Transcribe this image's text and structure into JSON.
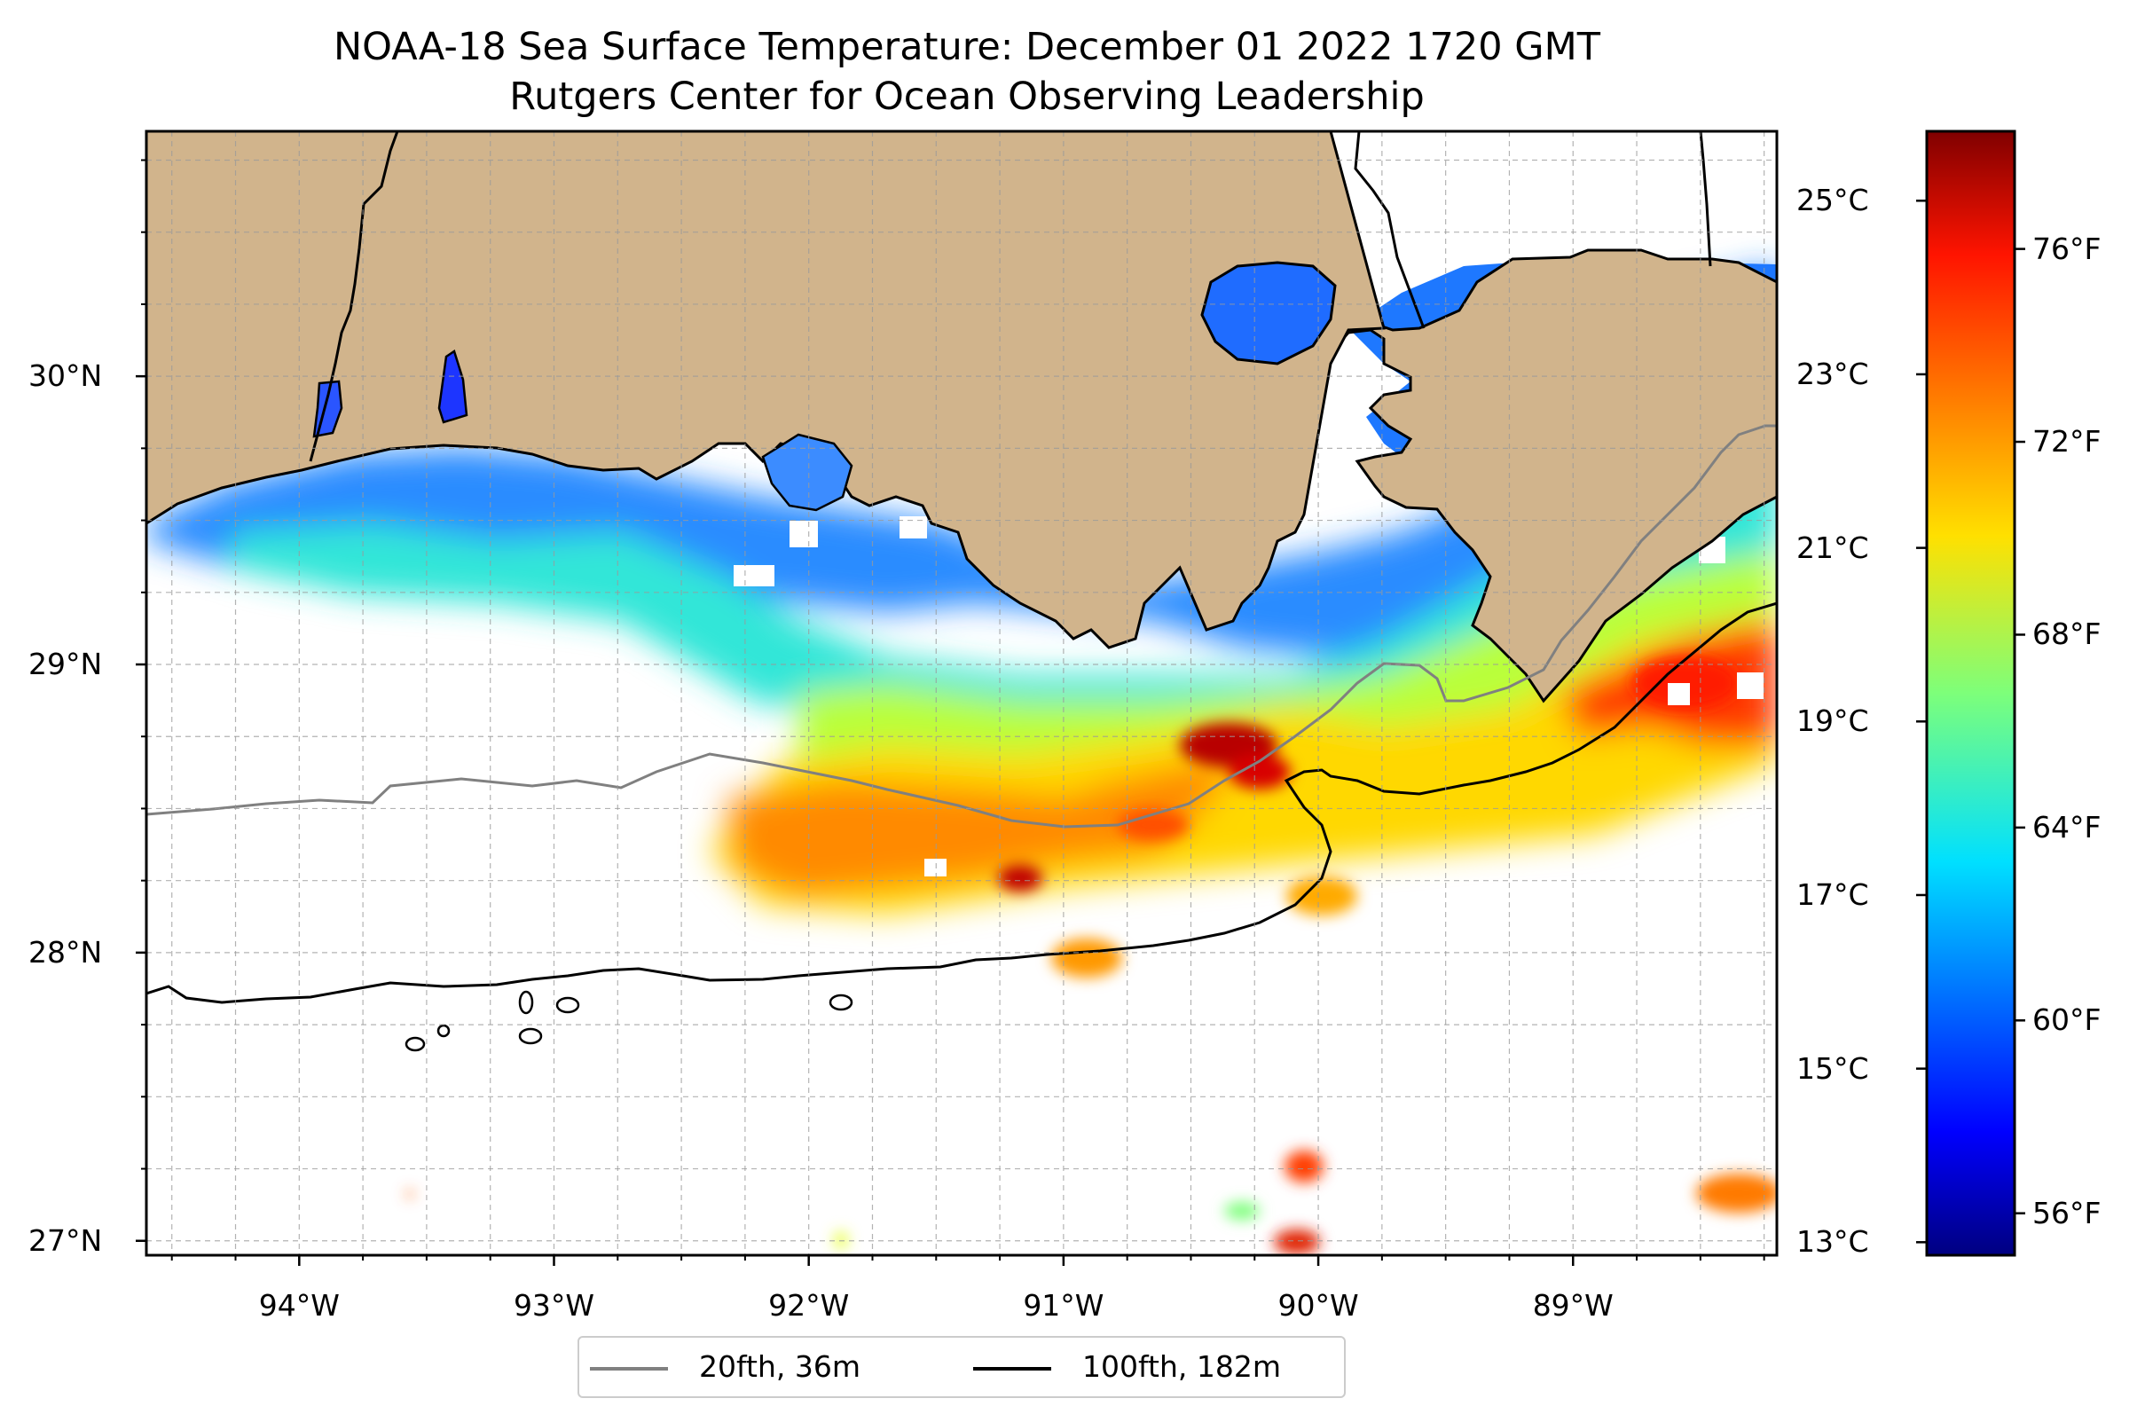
{
  "title": {
    "line1": "NOAA-18 Sea Surface Temperature: December 01 2022 1720 GMT",
    "line2": "Rutgers Center for Ocean Observing Leadership"
  },
  "map": {
    "lon_range": [
      -94.6,
      -88.2
    ],
    "lat_range": [
      26.95,
      30.85
    ],
    "x_ticks": [
      {
        "value": -94,
        "label": "94°W"
      },
      {
        "value": -93,
        "label": "93°W"
      },
      {
        "value": -92,
        "label": "92°W"
      },
      {
        "value": -91,
        "label": "91°W"
      },
      {
        "value": -90,
        "label": "90°W"
      },
      {
        "value": -89,
        "label": "89°W"
      }
    ],
    "y_ticks": [
      {
        "value": 30,
        "label": "30°N"
      },
      {
        "value": 29,
        "label": "29°N"
      },
      {
        "value": 28,
        "label": "28°N"
      },
      {
        "value": 27,
        "label": "27°N"
      }
    ],
    "land_color": "#d1b48c",
    "grid": true
  },
  "colorbar": {
    "celsius_ticks": [
      {
        "value": 13,
        "label": "13°C"
      },
      {
        "value": 15,
        "label": "15°C"
      },
      {
        "value": 17,
        "label": "17°C"
      },
      {
        "value": 19,
        "label": "19°C"
      },
      {
        "value": 21,
        "label": "21°C"
      },
      {
        "value": 23,
        "label": "23°C"
      },
      {
        "value": 25,
        "label": "25°C"
      }
    ],
    "fahrenheit_ticks": [
      {
        "value": 56,
        "label": "56°F"
      },
      {
        "value": 60,
        "label": "60°F"
      },
      {
        "value": 64,
        "label": "64°F"
      },
      {
        "value": 68,
        "label": "68°F"
      },
      {
        "value": 72,
        "label": "72°F"
      },
      {
        "value": 76,
        "label": "76°F"
      }
    ],
    "range_c": [
      12.85,
      25.8
    ],
    "colormap": "jet"
  },
  "legend": {
    "items": [
      {
        "label": "20fth, 36m",
        "color": "#808080"
      },
      {
        "label": "100fth, 182m",
        "color": "#000000"
      }
    ]
  }
}
